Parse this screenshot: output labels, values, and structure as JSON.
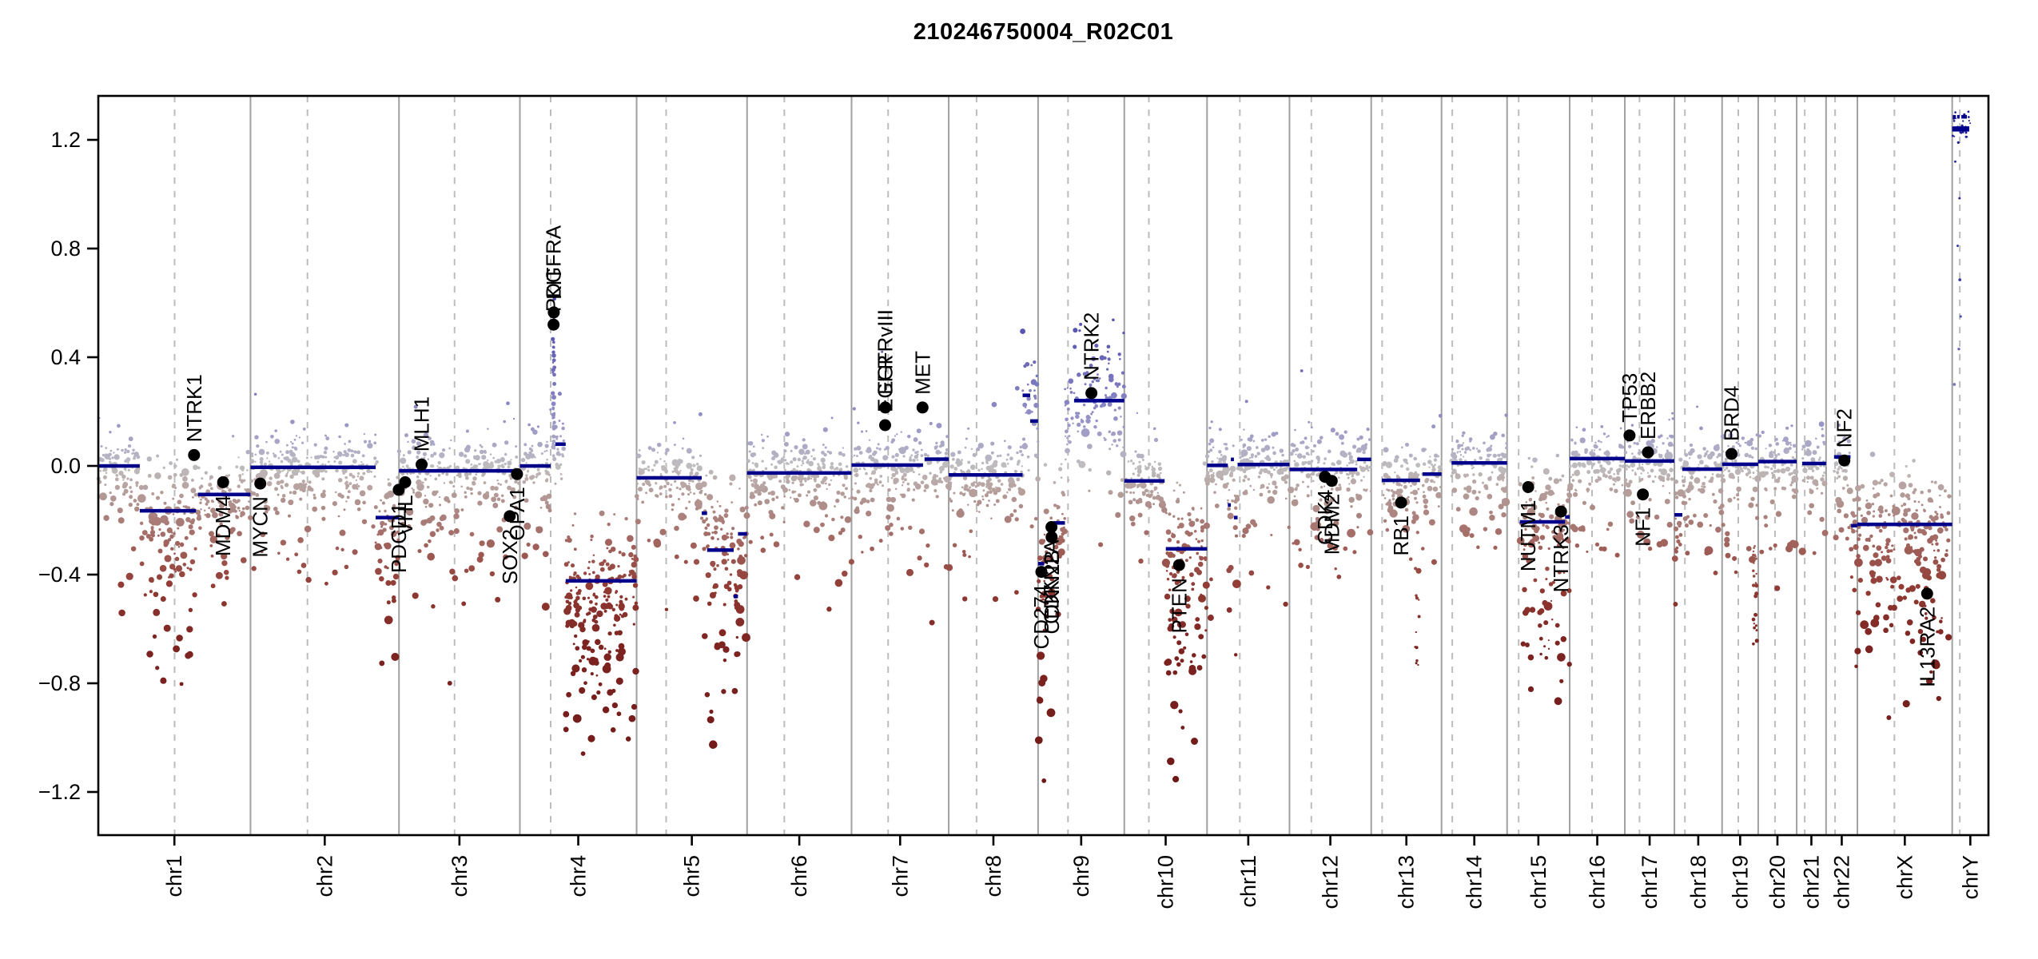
{
  "colors": {
    "background": "#ffffff",
    "segment_line": "#00008B",
    "gene_dot": "#000000",
    "chromosome_boundary_line": "#a0a0a0",
    "centromere_line": "#bcbcbc",
    "axis": "#000000",
    "scale_pos": [
      [
        0,
        "#bfbdbf"
      ],
      [
        0.07,
        "#adaac6"
      ],
      [
        0.16,
        "#9894c6"
      ],
      [
        0.28,
        "#7f7cc0"
      ],
      [
        0.45,
        "#605cb2"
      ],
      [
        0.7,
        "#3f3ca4"
      ],
      [
        1.3,
        "#1d1b8e"
      ]
    ],
    "scale_neg": [
      [
        0,
        "#bfbdbf"
      ],
      [
        0.07,
        "#b8a6a4"
      ],
      [
        0.16,
        "#ad8a86"
      ],
      [
        0.28,
        "#a2645e"
      ],
      [
        0.45,
        "#903a33"
      ],
      [
        0.65,
        "#7d2421"
      ],
      [
        1.3,
        "#6b1512"
      ]
    ]
  },
  "chart_data": {
    "type": "scatter",
    "title": "210246750004_R02C01",
    "subtitle": "",
    "xlabel": "",
    "ylabel": "",
    "ylim": [
      -1.36,
      1.36
    ],
    "grid": "chromosome boundaries solid, centromeres dashed",
    "legend": "none",
    "yticks": [
      1.2,
      0.8,
      0.4,
      0.0,
      -0.4,
      -0.8,
      -1.2
    ],
    "ytick_labels": [
      "1.2",
      "0.8",
      "0.4",
      "0.0",
      "−0.4",
      "−0.8",
      "−1.2"
    ],
    "chromosomes": [
      {
        "name": "chr1",
        "length_mb": 249.25,
        "centromere_mb": 125.0
      },
      {
        "name": "chr2",
        "length_mb": 243.2,
        "centromere_mb": 93.3
      },
      {
        "name": "chr3",
        "length_mb": 198.02,
        "centromere_mb": 91.0
      },
      {
        "name": "chr4",
        "length_mb": 191.15,
        "centromere_mb": 50.4
      },
      {
        "name": "chr5",
        "length_mb": 180.92,
        "centromere_mb": 48.4
      },
      {
        "name": "chr6",
        "length_mb": 171.12,
        "centromere_mb": 61.0
      },
      {
        "name": "chr7",
        "length_mb": 159.14,
        "centromere_mb": 59.9
      },
      {
        "name": "chr8",
        "length_mb": 146.36,
        "centromere_mb": 45.6
      },
      {
        "name": "chr9",
        "length_mb": 141.21,
        "centromere_mb": 49.0
      },
      {
        "name": "chr10",
        "length_mb": 135.53,
        "centromere_mb": 40.2
      },
      {
        "name": "chr11",
        "length_mb": 135.01,
        "centromere_mb": 53.7
      },
      {
        "name": "chr12",
        "length_mb": 133.85,
        "centromere_mb": 35.8
      },
      {
        "name": "chr13",
        "length_mb": 115.17,
        "centromere_mb": 17.9
      },
      {
        "name": "chr14",
        "length_mb": 107.35,
        "centromere_mb": 17.6
      },
      {
        "name": "chr15",
        "length_mb": 102.53,
        "centromere_mb": 19.0
      },
      {
        "name": "chr16",
        "length_mb": 90.35,
        "centromere_mb": 36.6
      },
      {
        "name": "chr17",
        "length_mb": 81.2,
        "centromere_mb": 24.0
      },
      {
        "name": "chr18",
        "length_mb": 78.08,
        "centromere_mb": 17.2
      },
      {
        "name": "chr19",
        "length_mb": 59.13,
        "centromere_mb": 26.5
      },
      {
        "name": "chr20",
        "length_mb": 63.03,
        "centromere_mb": 27.5
      },
      {
        "name": "chr21",
        "length_mb": 48.13,
        "centromere_mb": 13.2
      },
      {
        "name": "chr22",
        "length_mb": 51.3,
        "centromere_mb": 14.7
      },
      {
        "name": "chrX",
        "length_mb": 155.27,
        "centromere_mb": 60.6
      },
      {
        "name": "chrY",
        "length_mb": 59.37,
        "centromere_mb": 12.5
      }
    ],
    "segments": [
      {
        "chrom": "chr1",
        "start": 0,
        "end": 68,
        "value": 0
      },
      {
        "chrom": "chr1",
        "start": 68,
        "end": 160,
        "value": -0.165
      },
      {
        "chrom": "chr1",
        "start": 163,
        "end": 249.2,
        "value": -0.105
      },
      {
        "chrom": "chr2",
        "start": 0,
        "end": 205,
        "value": -0.005
      },
      {
        "chrom": "chr2",
        "start": 205,
        "end": 243.2,
        "value": -0.19
      },
      {
        "chrom": "chr3",
        "start": 0,
        "end": 198,
        "value": -0.018
      },
      {
        "chrom": "chr4",
        "start": 0,
        "end": 50.4,
        "value": 0
      },
      {
        "chrom": "chr4",
        "start": 58,
        "end": 75,
        "value": 0.08
      },
      {
        "chrom": "chr4",
        "start": 75,
        "end": 191.1,
        "value": -0.423
      },
      {
        "chrom": "chr5",
        "start": 0,
        "end": 106.7,
        "value": -0.044
      },
      {
        "chrom": "chr5",
        "start": 106.7,
        "end": 115.5,
        "value": -0.174
      },
      {
        "chrom": "chr5",
        "start": 115.5,
        "end": 159,
        "value": -0.31
      },
      {
        "chrom": "chr5",
        "start": 159,
        "end": 166,
        "value": -0.48
      },
      {
        "chrom": "chr5",
        "start": 166,
        "end": 180.9,
        "value": -0.25
      },
      {
        "chrom": "chr6",
        "start": 0,
        "end": 171.1,
        "value": -0.026
      },
      {
        "chrom": "chr7",
        "start": 0,
        "end": 117,
        "value": 0.003
      },
      {
        "chrom": "chr7",
        "start": 119.5,
        "end": 159.1,
        "value": 0.025
      },
      {
        "chrom": "chr8",
        "start": 0,
        "end": 121,
        "value": -0.033
      },
      {
        "chrom": "chr8",
        "start": 121,
        "end": 133.5,
        "value": 0.26
      },
      {
        "chrom": "chr8",
        "start": 133.5,
        "end": 146.3,
        "value": 0.165
      },
      {
        "chrom": "chr9",
        "start": 0,
        "end": 10,
        "value": -0.36
      },
      {
        "chrom": "chr9",
        "start": 10,
        "end": 25,
        "value": -0.28,
        "pointonly": true
      },
      {
        "chrom": "chr9",
        "start": 25,
        "end": 44,
        "value": -0.21
      },
      {
        "chrom": "chr9",
        "start": 44,
        "end": 59,
        "value": 0.18,
        "pointonly": true
      },
      {
        "chrom": "chr9",
        "start": 59,
        "end": 141.2,
        "value": 0.24
      },
      {
        "chrom": "chr10",
        "start": 0,
        "end": 66,
        "value": -0.055
      },
      {
        "chrom": "chr10",
        "start": 68,
        "end": 135.5,
        "value": -0.305
      },
      {
        "chrom": "chr11",
        "start": 0,
        "end": 34,
        "value": 0.002
      },
      {
        "chrom": "chr11",
        "start": 34,
        "end": 39,
        "value": -0.144
      },
      {
        "chrom": "chr11",
        "start": 39,
        "end": 44,
        "value": 0.024
      },
      {
        "chrom": "chr11",
        "start": 44,
        "end": 50,
        "value": -0.19
      },
      {
        "chrom": "chr11",
        "start": 50,
        "end": 135,
        "value": 0.005
      },
      {
        "chrom": "chr12",
        "start": 0,
        "end": 111,
        "value": -0.013
      },
      {
        "chrom": "chr12",
        "start": 111,
        "end": 133.8,
        "value": 0.024
      },
      {
        "chrom": "chr13",
        "start": 17.5,
        "end": 80,
        "value": -0.053
      },
      {
        "chrom": "chr13",
        "start": 84,
        "end": 115.2,
        "value": -0.03
      },
      {
        "chrom": "chr14",
        "start": 16.5,
        "end": 107.3,
        "value": 0.011
      },
      {
        "chrom": "chr15",
        "start": 21,
        "end": 95,
        "value": -0.206
      },
      {
        "chrom": "chr15",
        "start": 95,
        "end": 102.5,
        "value": -0.188
      },
      {
        "chrom": "chr16",
        "start": 0,
        "end": 90.3,
        "value": 0.027
      },
      {
        "chrom": "chr17",
        "start": 0,
        "end": 81.2,
        "value": 0.018
      },
      {
        "chrom": "chr18",
        "start": 0,
        "end": 13,
        "value": -0.18
      },
      {
        "chrom": "chr18",
        "start": 13,
        "end": 78,
        "value": -0.012
      },
      {
        "chrom": "chr19",
        "start": 0,
        "end": 59.1,
        "value": 0.006
      },
      {
        "chrom": "chr20",
        "start": 0,
        "end": 63,
        "value": 0.016
      },
      {
        "chrom": "chr21",
        "start": 9,
        "end": 48.1,
        "value": 0.009
      },
      {
        "chrom": "chr22",
        "start": 13,
        "end": 40,
        "value": 0.033
      },
      {
        "chrom": "chr22",
        "start": 41,
        "end": 51,
        "value": -0.22
      },
      {
        "chrom": "chrX",
        "start": 0,
        "end": 155.2,
        "value": -0.215
      },
      {
        "chrom": "chrY",
        "start": 0,
        "end": 28,
        "value": 1.24,
        "thick": true,
        "nopoints": true
      },
      {
        "chrom": "chrY",
        "start": 1,
        "end": 6,
        "value": 1.285,
        "nopoints": true
      },
      {
        "chrom": "chrY",
        "start": 8,
        "end": 12,
        "value": 1.285,
        "nopoints": true
      },
      {
        "chrom": "chrY",
        "start": 15,
        "end": 24,
        "value": 1.285,
        "nopoints": true
      }
    ],
    "genes": [
      {
        "name": "NTRK1",
        "chrom": "chr1",
        "mb": 156.8,
        "value": 0.04,
        "label": "above"
      },
      {
        "name": "MDM4",
        "chrom": "chr1",
        "mb": 204.5,
        "value": -0.06,
        "label": "below"
      },
      {
        "name": "MYCN",
        "chrom": "chr2",
        "mb": 16.1,
        "value": -0.065,
        "label": "below"
      },
      {
        "name": "PDCD1",
        "chrom": "chr2",
        "mb": 242.8,
        "value": -0.088,
        "label": "below"
      },
      {
        "name": "VHL",
        "chrom": "chr3",
        "mb": 10.2,
        "value": -0.06,
        "label": "below"
      },
      {
        "name": "MLH1",
        "chrom": "chr3",
        "mb": 37.0,
        "value": 0.005,
        "label": "above"
      },
      {
        "name": "SOX2",
        "chrom": "chr3",
        "mb": 181.4,
        "value": -0.185,
        "label": "below"
      },
      {
        "name": "OPA1",
        "chrom": "chr3",
        "mb": 193.3,
        "value": -0.03,
        "label": "below"
      },
      {
        "name": "KIT",
        "chrom": "chr4",
        "mb": 55.5,
        "value": 0.565,
        "label": "above"
      },
      {
        "name": "PDGFRA",
        "chrom": "chr4",
        "mb": 55.1,
        "value": 0.52,
        "label": "above"
      },
      {
        "name": "EGFRvIII",
        "chrom": "chr7",
        "mb": 55.2,
        "value": 0.215,
        "label": "above"
      },
      {
        "name": "EGFR",
        "chrom": "chr7",
        "mb": 55.0,
        "value": 0.15,
        "label": "above"
      },
      {
        "name": "MET",
        "chrom": "chr7",
        "mb": 116.3,
        "value": 0.215,
        "label": "above"
      },
      {
        "name": "CD274",
        "chrom": "chr9",
        "mb": 5.4,
        "value": -0.39,
        "label": "below"
      },
      {
        "name": "CDKN2A",
        "chrom": "chr9",
        "mb": 21.9,
        "value": -0.225,
        "label": "below"
      },
      {
        "name": "CDKN2B",
        "chrom": "chr9",
        "mb": 22.2,
        "value": -0.262,
        "label": "below"
      },
      {
        "name": "NTRK2",
        "chrom": "chr9",
        "mb": 87.3,
        "value": 0.268,
        "label": "above"
      },
      {
        "name": "PTEN",
        "chrom": "chr10",
        "mb": 89.7,
        "value": -0.365,
        "label": "below"
      },
      {
        "name": "CDK4",
        "chrom": "chr12",
        "mb": 58.1,
        "value": -0.04,
        "label": "below"
      },
      {
        "name": "MDM2",
        "chrom": "chr12",
        "mb": 69.2,
        "value": -0.055,
        "label": "below"
      },
      {
        "name": "RB1",
        "chrom": "chr13",
        "mb": 48.9,
        "value": -0.135,
        "label": "below"
      },
      {
        "name": "NUTM1",
        "chrom": "chr15",
        "mb": 34.6,
        "value": -0.078,
        "label": "below"
      },
      {
        "name": "NTRK3",
        "chrom": "chr15",
        "mb": 88.4,
        "value": -0.168,
        "label": "below"
      },
      {
        "name": "TP53",
        "chrom": "chr17",
        "mb": 7.6,
        "value": 0.112,
        "label": "above"
      },
      {
        "name": "NF1",
        "chrom": "chr17",
        "mb": 29.5,
        "value": -0.105,
        "label": "below"
      },
      {
        "name": "ERBB2",
        "chrom": "chr17",
        "mb": 37.9,
        "value": 0.05,
        "label": "above"
      },
      {
        "name": "BRD4",
        "chrom": "chr19",
        "mb": 15.4,
        "value": 0.044,
        "label": "above"
      },
      {
        "name": "NF2",
        "chrom": "chr22",
        "mb": 30.0,
        "value": 0.02,
        "label": "above"
      },
      {
        "name": "IL13RA2",
        "chrom": "chrX",
        "mb": 114.3,
        "value": -0.47,
        "label": "below"
      }
    ],
    "clouds": [
      {
        "chrom": "chr4",
        "start": 53.8,
        "end": 56.6,
        "vmin": 0.02,
        "vmax": 0.62,
        "n": 46,
        "rmin": 1,
        "rmax": 3
      },
      {
        "chrom": "chr4",
        "start": 95,
        "end": 150,
        "vmin": -0.78,
        "vmax": -0.56,
        "n": 9,
        "rmin": 1.2,
        "rmax": 2.8
      },
      {
        "chrom": "chr10",
        "start": 70,
        "end": 120,
        "vmin": -0.78,
        "vmax": -0.55,
        "n": 7,
        "rmin": 1.4,
        "rmax": 3
      },
      {
        "chrom": "chr13",
        "start": 72,
        "end": 79,
        "vmin": -0.75,
        "vmax": -0.35,
        "n": 11,
        "rmin": 1,
        "rmax": 2.2
      },
      {
        "chrom": "chr15",
        "start": 50,
        "end": 78,
        "vmin": -0.72,
        "vmax": -0.45,
        "n": 9,
        "rmin": 1,
        "rmax": 2.4
      },
      {
        "chrom": "chr19",
        "start": 51,
        "end": 57,
        "vmin": -0.72,
        "vmax": -0.12,
        "n": 26,
        "rmin": 1,
        "rmax": 2.6
      },
      {
        "chrom": "chrY",
        "start": 0.5,
        "end": 30,
        "vmin": 1.21,
        "vmax": 1.31,
        "n": 26,
        "rmin": 0.8,
        "rmax": 1.6
      },
      {
        "chrom": "chrX",
        "start": 100,
        "end": 150,
        "vmin": -0.62,
        "vmax": -0.5,
        "n": 6,
        "rmin": 1.2,
        "rmax": 2.6
      }
    ],
    "stray_points": [
      {
        "chrom": "chrY",
        "mb": 10,
        "value": 1.19
      },
      {
        "chrom": "chrY",
        "mb": 5,
        "value": 1.12
      },
      {
        "chrom": "chrY",
        "mb": 12,
        "value": 0.985
      },
      {
        "chrom": "chrY",
        "mb": 9,
        "value": 0.81
      },
      {
        "chrom": "chrY",
        "mb": 12.5,
        "value": 0.685
      },
      {
        "chrom": "chrY",
        "mb": 11,
        "value": 0.43
      },
      {
        "chrom": "chrY",
        "mb": 3.5,
        "value": 0.3
      },
      {
        "chrom": "chrY",
        "mb": 14,
        "value": 0.55
      },
      {
        "chrom": "chr12",
        "mb": 20,
        "value": 0.35
      },
      {
        "chrom": "chr7",
        "mb": 50,
        "value": 0.42
      }
    ]
  }
}
